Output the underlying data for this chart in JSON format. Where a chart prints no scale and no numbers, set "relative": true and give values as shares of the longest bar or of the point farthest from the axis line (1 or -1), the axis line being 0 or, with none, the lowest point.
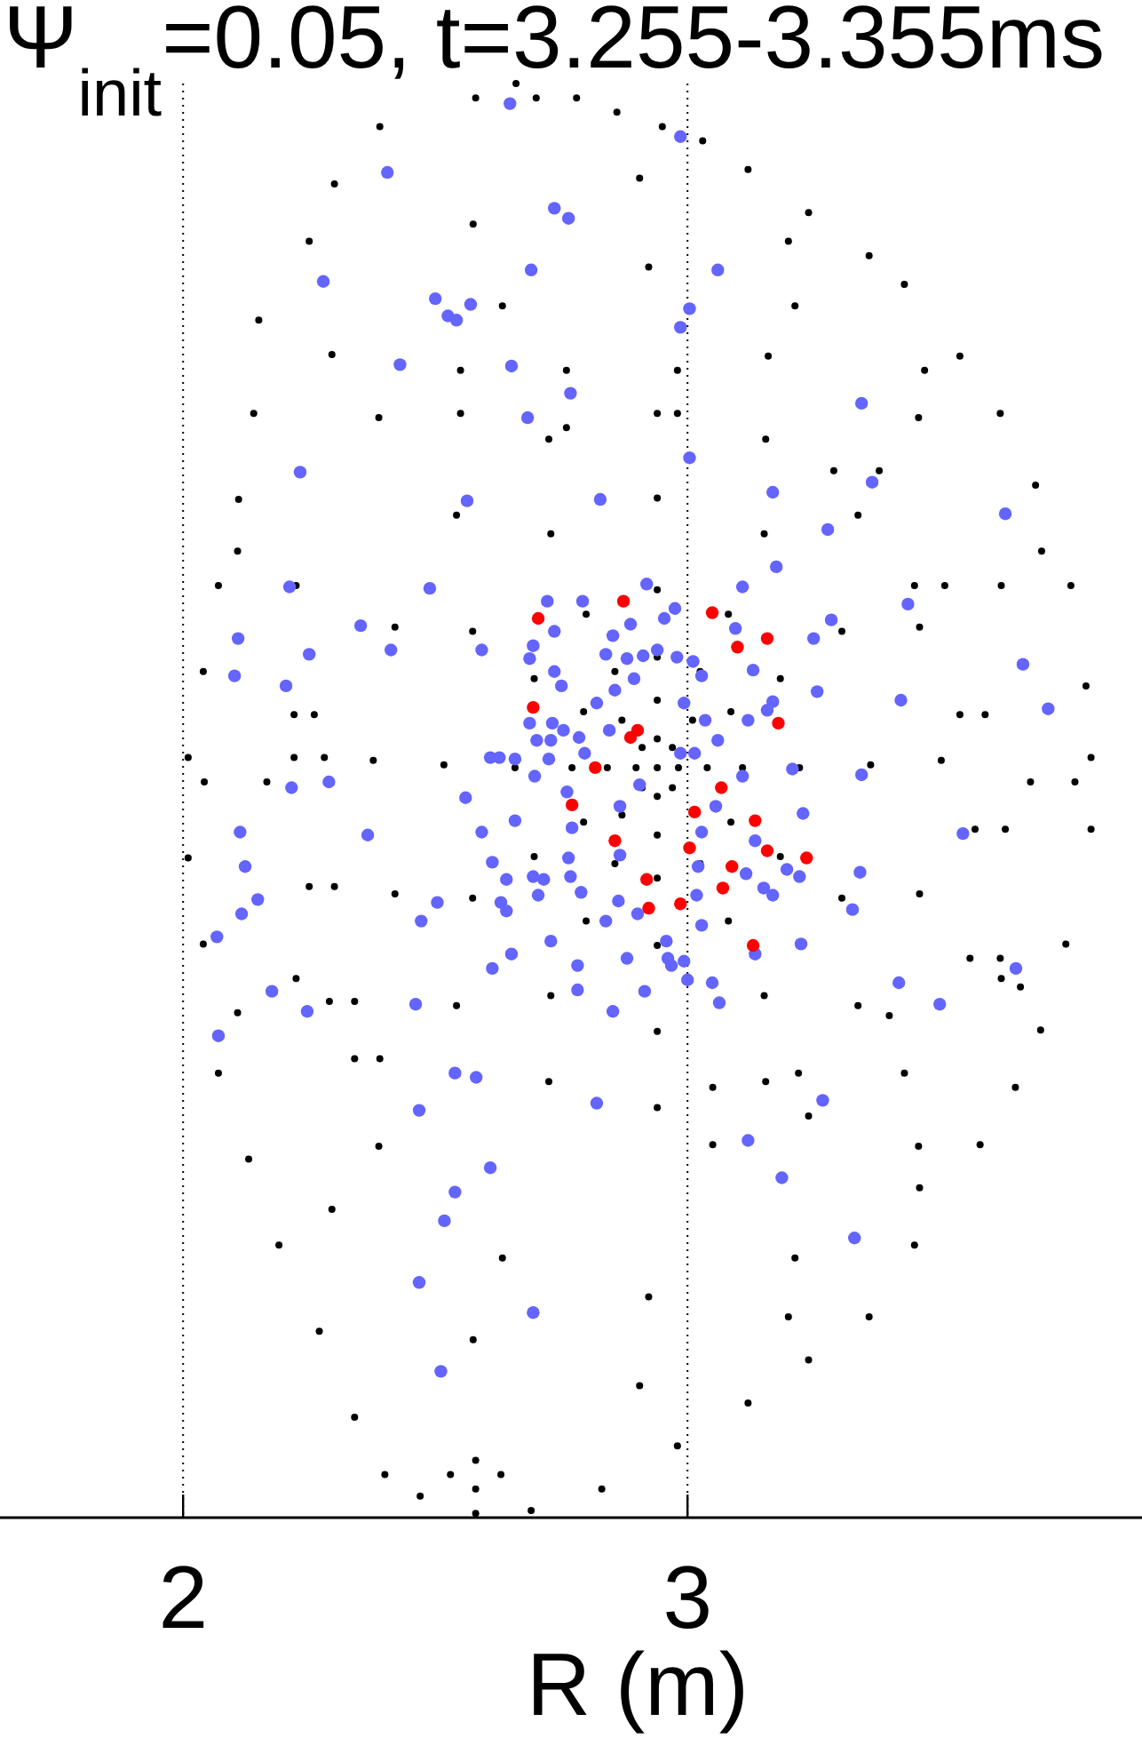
{
  "chart_data": {
    "type": "scatter",
    "title": "Ψ$_{init}$=0.05, t=3.255-3.355ms",
    "xlabel": "R (m)",
    "relative": true,
    "marker": "circle",
    "grid": "x",
    "xlim": [
      1.637,
      3.901
    ],
    "xticks": [
      2,
      3
    ],
    "series": [
      {
        "color": "#000000",
        "x": [
          2.66,
          2.7,
          2.78,
          2.86,
          2.95,
          3.03,
          3.12,
          3.24,
          3.36,
          3.43,
          3.54,
          3.62,
          3.69,
          3.76,
          3.79,
          3.8,
          3.8,
          3.75,
          3.7,
          3.65,
          3.58,
          3.45,
          3.36,
          3.24,
          3.12,
          2.98,
          2.83,
          2.69,
          2.58,
          2.47,
          2.4,
          2.34,
          2.27,
          2.19,
          2.13,
          2.07,
          2.04,
          2.01,
          2.01,
          2.04,
          2.07,
          2.11,
          2.14,
          2.15,
          2.25,
          2.3,
          2.39,
          2.58,
          2.94,
          2.982,
          2.898,
          2.94,
          2.94,
          2.97,
          2.91,
          2.97,
          2.91,
          3.039,
          2.841,
          2.94,
          2.94,
          3.01,
          2.87,
          2.87,
          3.109,
          3.086,
          3.025,
          2.94,
          2.856,
          2.794,
          2.771,
          2.794,
          2.856,
          2.94,
          3.025,
          3.086,
          3.222,
          3.184,
          3.081,
          2.94,
          2.799,
          2.696,
          2.658,
          2.696,
          2.799,
          2.94,
          3.081,
          3.184,
          3.363,
          3.306,
          3.152,
          2.94,
          2.729,
          2.574,
          2.517,
          2.574,
          2.729,
          2.94,
          3.152,
          3.306,
          3.503,
          3.46,
          3.338,
          3.155,
          2.94,
          2.725,
          2.542,
          2.42,
          2.377,
          2.42,
          2.542,
          2.725,
          2.94,
          3.155,
          3.338,
          3.46,
          3.68,
          3.622,
          3.458,
          3.213,
          2.923,
          2.633,
          2.388,
          2.224,
          2.166,
          2.224,
          2.388,
          2.633,
          2.923,
          3.213,
          3.458,
          3.622,
          3.768,
          3.702,
          3.47,
          3.2,
          2.905,
          2.575,
          2.295,
          2.108,
          2.042,
          2.108,
          2.295,
          2.575,
          2.905,
          3.2,
          3.46,
          3.66,
          2.22,
          2.22,
          2.25,
          2.29,
          2.34,
          2.26,
          2.28,
          2.3,
          2.34,
          2.39,
          3.16,
          3.29,
          3.45,
          3.54,
          3.57,
          3.56,
          3.38,
          3.51,
          3.59,
          3.63,
          3.62,
          2.55,
          2.76,
          2.98,
          2.55,
          2.76,
          2.98,
          3.05,
          3.22,
          3.4,
          3.05,
          3.24,
          3.43,
          2.53,
          2.58,
          2.63,
          2.58
        ],
        "values": [
          1.0,
          0.99,
          0.99,
          0.98,
          0.97,
          0.96,
          0.94,
          0.91,
          0.88,
          0.86,
          0.81,
          0.77,
          0.72,
          0.65,
          0.58,
          0.53,
          0.48,
          0.4,
          0.34,
          0.3,
          0.26,
          0.19,
          0.14,
          0.11,
          0.08,
          0.05,
          0.02,
          0.005,
          0.003,
          0.015,
          0.03,
          0.07,
          0.13,
          0.19,
          0.25,
          0.31,
          0.4,
          0.46,
          0.53,
          0.59,
          0.65,
          0.71,
          0.77,
          0.835,
          0.89,
          0.93,
          0.97,
          0.99,
          0.523,
          0.523,
          0.523,
          0.543,
          0.503,
          0.537,
          0.537,
          0.509,
          0.509,
          0.523,
          0.523,
          0.57,
          0.476,
          0.556,
          0.556,
          0.49,
          0.523,
          0.562,
          0.59,
          0.6,
          0.59,
          0.562,
          0.523,
          0.485,
          0.456,
          0.446,
          0.456,
          0.485,
          0.523,
          0.585,
          0.63,
          0.647,
          0.63,
          0.585,
          0.523,
          0.461,
          0.416,
          0.399,
          0.416,
          0.461,
          0.525,
          0.618,
          0.686,
          0.711,
          0.686,
          0.618,
          0.525,
          0.432,
          0.364,
          0.339,
          0.364,
          0.432,
          0.528,
          0.621,
          0.699,
          0.752,
          0.77,
          0.752,
          0.699,
          0.621,
          0.528,
          0.435,
          0.357,
          0.304,
          0.286,
          0.304,
          0.357,
          0.435,
          0.513,
          0.65,
          0.767,
          0.845,
          0.872,
          0.845,
          0.767,
          0.65,
          0.513,
          0.376,
          0.259,
          0.181,
          0.154,
          0.181,
          0.259,
          0.376,
          0.513,
          0.674,
          0.8,
          0.89,
          0.934,
          0.902,
          0.811,
          0.674,
          0.513,
          0.352,
          0.215,
          0.124,
          0.092,
          0.14,
          0.23,
          0.37,
          0.56,
          0.53,
          0.44,
          0.36,
          0.32,
          0.56,
          0.53,
          0.44,
          0.36,
          0.32,
          0.81,
          0.73,
          0.65,
          0.56,
          0.48,
          0.39,
          0.73,
          0.65,
          0.56,
          0.48,
          0.39,
          0.8,
          0.8,
          0.8,
          0.77,
          0.76,
          0.77,
          0.3,
          0.31,
          0.35,
          0.26,
          0.28,
          0.31,
          0.03,
          0.04,
          0.03,
          0.02
        ]
      },
      {
        "color": "#6464ff",
        "x": [
          2.648,
          2.405,
          2.736,
          2.764,
          2.69,
          2.278,
          2.5,
          2.57,
          2.525,
          2.542,
          2.43,
          2.651,
          2.768,
          2.683,
          2.232,
          2.563,
          2.211,
          2.489,
          2.722,
          2.109,
          2.352,
          2.736,
          2.25,
          2.412,
          2.592,
          2.694,
          2.687,
          2.102,
          2.204,
          2.736,
          2.75,
          2.687,
          2.732,
          2.754,
          2.701,
          2.729,
          2.609,
          2.658,
          2.986,
          3.06,
          3.004,
          2.986,
          3.345,
          3.004,
          3.366,
          2.827,
          3.169,
          3.63,
          3.278,
          3.176,
          2.919,
          3.109,
          2.792,
          3.437,
          2.975,
          2.954,
          2.887,
          3.285,
          2.852,
          3.095,
          3.25,
          2.838,
          2.88,
          2.912,
          2.94,
          2.979,
          3.011,
          3.028,
          3.13,
          3.665,
          2.894,
          2.856,
          3.257,
          3.423,
          3.715,
          2.993,
          3.169,
          3.158,
          2.82,
          3.035,
          3.12,
          3.06,
          3.014,
          2.785,
          2.845,
          2.627,
          2.725,
          2.796,
          2.986,
          3.208,
          3.345,
          2.697,
          2.56,
          3.109,
          2.761,
          2.905,
          3.056,
          2.866,
          3.229,
          2.658,
          2.592,
          2.771,
          3.028,
          3.134,
          2.764,
          2.866,
          2.613,
          2.694,
          2.768,
          3.197,
          3.222,
          3.342,
          3.021,
          3.116,
          2.63,
          2.641,
          2.704,
          2.863,
          2.901,
          3.018,
          3.028,
          3.151,
          3.169,
          3.225,
          3.327,
          2.729,
          2.838,
          2.651,
          2.613,
          2.88,
          2.958,
          2.961,
          2.968,
          2.993,
          3.0,
          3.049,
          2.915,
          2.782,
          3.546,
          3.419,
          3.5,
          3.651,
          3.268,
          3.12,
          3.187,
          3.331,
          2.82,
          2.852,
          3.063,
          2.782,
          2.215,
          2.289,
          2.113,
          2.366,
          2.123,
          2.148,
          2.116,
          2.067,
          2.504,
          2.472,
          2.641,
          2.715,
          2.176,
          2.246,
          2.07,
          2.461,
          2.539,
          2.581,
          2.468,
          2.609,
          2.539,
          2.518,
          2.468,
          2.694,
          2.511,
          3.134,
          2.789
        ],
        "values": [
          0.986,
          0.938,
          0.913,
          0.906,
          0.87,
          0.862,
          0.85,
          0.846,
          0.838,
          0.835,
          0.804,
          0.803,
          0.784,
          0.767,
          0.729,
          0.709,
          0.649,
          0.648,
          0.639,
          0.613,
          0.622,
          0.618,
          0.602,
          0.605,
          0.605,
          0.608,
          0.599,
          0.587,
          0.58,
          0.59,
          0.58,
          0.554,
          0.554,
          0.549,
          0.542,
          0.542,
          0.53,
          0.529,
          0.963,
          0.87,
          0.843,
          0.83,
          0.777,
          0.739,
          0.722,
          0.71,
          0.715,
          0.7,
          0.689,
          0.663,
          0.651,
          0.649,
          0.639,
          0.637,
          0.634,
          0.627,
          0.623,
          0.626,
          0.615,
          0.62,
          0.613,
          0.602,
          0.599,
          0.601,
          0.605,
          0.6,
          0.597,
          0.587,
          0.591,
          0.595,
          0.585,
          0.577,
          0.576,
          0.57,
          0.564,
          0.568,
          0.569,
          0.563,
          0.568,
          0.556,
          0.556,
          0.542,
          0.533,
          0.544,
          0.549,
          0.53,
          0.529,
          0.533,
          0.533,
          0.522,
          0.518,
          0.517,
          0.502,
          0.517,
          0.506,
          0.511,
          0.496,
          0.496,
          0.491,
          0.486,
          0.478,
          0.481,
          0.478,
          0.472,
          0.46,
          0.462,
          0.457,
          0.447,
          0.447,
          0.452,
          0.447,
          0.45,
          0.454,
          0.449,
          0.429,
          0.423,
          0.434,
          0.43,
          0.421,
          0.434,
          0.413,
          0.439,
          0.434,
          0.4,
          0.424,
          0.402,
          0.416,
          0.393,
          0.383,
          0.39,
          0.402,
          0.39,
          0.385,
          0.388,
          0.375,
          0.373,
          0.367,
          0.368,
          0.477,
          0.373,
          0.358,
          0.383,
          0.291,
          0.263,
          0.237,
          0.195,
          0.289,
          0.353,
          0.359,
          0.385,
          0.509,
          0.513,
          0.478,
          0.476,
          0.454,
          0.431,
          0.421,
          0.405,
          0.429,
          0.416,
          0.445,
          0.445,
          0.367,
          0.353,
          0.336,
          0.358,
          0.31,
          0.307,
          0.284,
          0.244,
          0.227,
          0.207,
          0.164,
          0.143,
          0.102,
          0.393,
          0.436
        ]
      },
      {
        "color": "#ff0000",
        "x": [
          2.704,
          2.694,
          2.873,
          3.049,
          3.099,
          3.158,
          3.18,
          2.901,
          2.887,
          2.817,
          2.771,
          3.067,
          3.014,
          2.856,
          3.134,
          3.004,
          3.158,
          3.236,
          3.088,
          2.919,
          3.07,
          2.923,
          2.986,
          3.13
        ],
        "values": [
          0.627,
          0.565,
          0.639,
          0.631,
          0.607,
          0.613,
          0.554,
          0.549,
          0.544,
          0.523,
          0.497,
          0.509,
          0.492,
          0.472,
          0.486,
          0.467,
          0.465,
          0.46,
          0.454,
          0.445,
          0.439,
          0.425,
          0.428,
          0.399
        ]
      }
    ]
  }
}
